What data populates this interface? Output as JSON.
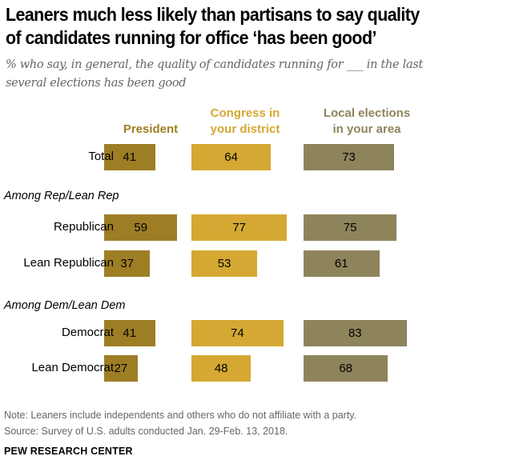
{
  "title_line1": "Leaners much less likely than partisans to say quality",
  "title_line2": "of candidates running for office ‘has been good’",
  "subtitle_line1": "% who say, in general, the quality of candidates running for ___ in the last",
  "subtitle_line2": "several elections has been good",
  "note": "Note: Leaners include independents and others who do not affiliate with a party.",
  "source": "Source: Survey of U.S. adults conducted Jan. 29-Feb. 13, 2018.",
  "brand": "PEW RESEARCH CENTER",
  "chart_data": {
    "type": "bar",
    "title": "Leaners much less likely than partisans to say quality of candidates running for office ‘has been good’",
    "categories": [
      "Total",
      "Republican",
      "Lean Republican",
      "Democrat",
      "Lean Democrat"
    ],
    "groups": [
      {
        "label": "Among Rep/Lean Rep",
        "categories": [
          "Republican",
          "Lean Republican"
        ]
      },
      {
        "label": "Among Dem/Lean Dem",
        "categories": [
          "Democrat",
          "Lean Democrat"
        ]
      }
    ],
    "series": [
      {
        "name": "President",
        "header": [
          "President"
        ],
        "color": "#9e7e24",
        "values": [
          41,
          59,
          37,
          41,
          27
        ]
      },
      {
        "name": "Congress in your district",
        "header": [
          "Congress in",
          "your district"
        ],
        "color": "#d4a832",
        "values": [
          64,
          77,
          53,
          74,
          48
        ]
      },
      {
        "name": "Local elections in your area",
        "header": [
          "Local elections",
          "in your area"
        ],
        "color": "#8e845c",
        "values": [
          73,
          75,
          61,
          83,
          68
        ]
      }
    ],
    "unit": "%",
    "xlim": [
      0,
      100
    ]
  }
}
